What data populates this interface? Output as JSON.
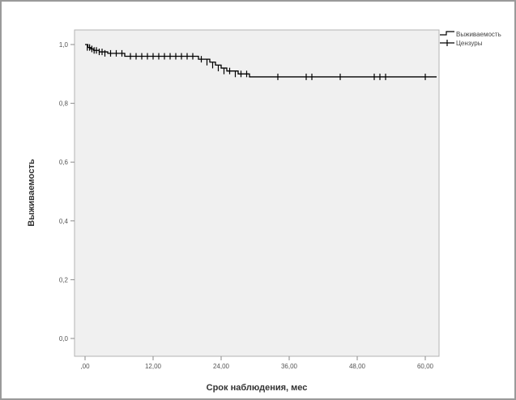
{
  "chart_data": {
    "type": "line",
    "title": "",
    "xlabel": "Срок наблюдения, мес",
    "ylabel": "Выживаемость",
    "xlim": [
      0,
      62
    ],
    "ylim": [
      0,
      1.04
    ],
    "x_ticks": [
      0,
      12,
      24,
      36,
      48,
      60
    ],
    "x_tick_labels": [
      ",00",
      "12,00",
      "24,00",
      "36,00",
      "48,00",
      "60,00"
    ],
    "y_ticks": [
      0,
      0.2,
      0.4,
      0.6,
      0.8,
      1.0
    ],
    "y_tick_labels": [
      "0,0",
      "0,2",
      "0,4",
      "0,6",
      "0,8",
      "1,0"
    ],
    "grid": false,
    "legend_position": "top-right",
    "legend": [
      "Выживаемость",
      "Цензуры"
    ],
    "series": [
      {
        "kind": "survival",
        "x": [
          0,
          0.5,
          1.0,
          1.5,
          2.5,
          4,
          7,
          20,
          22,
          23,
          24,
          25,
          27,
          29
        ],
        "y": [
          1.0,
          0.99,
          0.985,
          0.98,
          0.975,
          0.97,
          0.96,
          0.95,
          0.94,
          0.93,
          0.92,
          0.91,
          0.9,
          0.89
        ]
      },
      {
        "kind": "censored",
        "x": [
          0.4,
          0.8,
          1.2,
          1.6,
          2.0,
          2.5,
          3.0,
          3.5,
          4.5,
          5.5,
          6.5,
          8,
          9,
          10,
          11,
          12,
          13,
          14,
          15,
          16,
          17,
          18,
          19,
          20.5,
          21.5,
          22.5,
          23.5,
          24.5,
          25.5,
          26.5,
          27.5,
          28.5,
          34,
          39,
          40,
          45,
          51,
          52,
          53,
          60
        ],
        "y": [
          0.99,
          0.99,
          0.985,
          0.98,
          0.98,
          0.975,
          0.975,
          0.97,
          0.97,
          0.97,
          0.97,
          0.96,
          0.96,
          0.96,
          0.96,
          0.96,
          0.96,
          0.96,
          0.96,
          0.96,
          0.96,
          0.96,
          0.96,
          0.95,
          0.94,
          0.93,
          0.92,
          0.91,
          0.91,
          0.9,
          0.9,
          0.9,
          0.89,
          0.89,
          0.89,
          0.89,
          0.89,
          0.89,
          0.89,
          0.89
        ]
      }
    ]
  }
}
